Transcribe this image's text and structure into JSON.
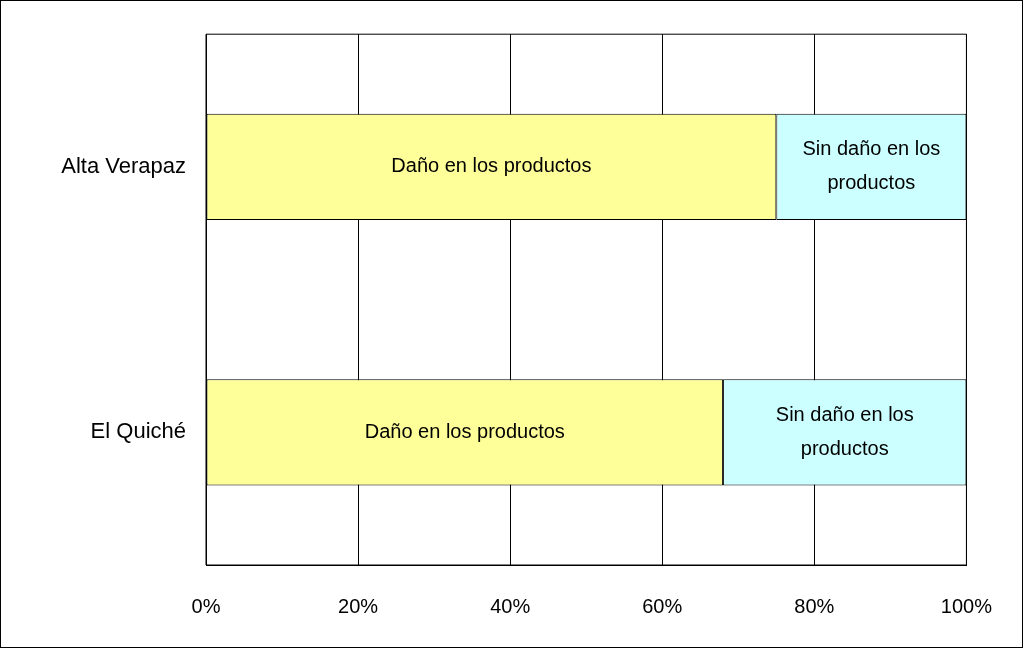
{
  "chart_data": {
    "type": "bar",
    "orientation": "horizontal",
    "stacked": true,
    "categories": [
      "Alta Verapaz",
      "El Quiché"
    ],
    "series": [
      {
        "name": "Daño en los productos",
        "color": "#ffff99",
        "values": [
          75,
          68
        ]
      },
      {
        "name": "Sin daño en los productos",
        "color": "#ccffff",
        "values": [
          25,
          32
        ]
      }
    ],
    "xlim": [
      0,
      100
    ],
    "xticks": [
      {
        "value": 0,
        "label": "0%"
      },
      {
        "value": 20,
        "label": "20%"
      },
      {
        "value": 40,
        "label": "40%"
      },
      {
        "value": 60,
        "label": "60%"
      },
      {
        "value": 80,
        "label": "80%"
      },
      {
        "value": 100,
        "label": "100%"
      }
    ],
    "grid": "x",
    "legend": false
  }
}
